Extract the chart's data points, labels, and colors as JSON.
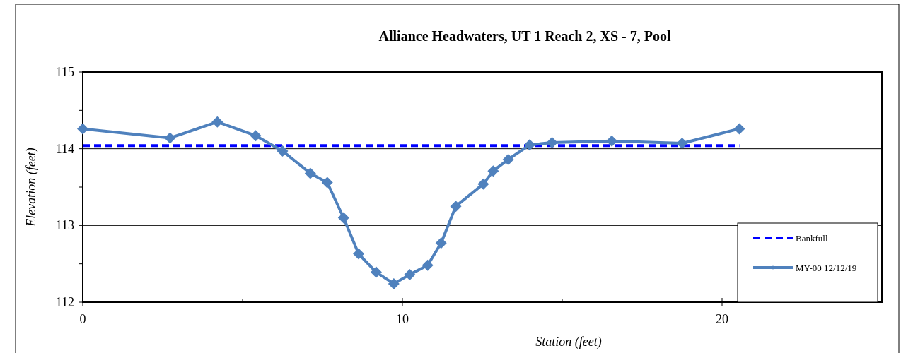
{
  "chart_data": {
    "type": "line",
    "title": "Alliance Headwaters, UT 1 Reach 2, XS - 7, Pool",
    "xlabel": "Station (feet)",
    "ylabel": "Elevation (feet)",
    "xlim": [
      0,
      25
    ],
    "xticks": [
      0,
      {
        "value": 5,
        "label": null
      },
      10,
      {
        "value": 15,
        "label": null
      },
      20,
      {
        "value": 25,
        "label": null
      }
    ],
    "ylim": [
      112,
      115
    ],
    "yticks": [
      112,
      {
        "value": 112.5,
        "label": null
      },
      113,
      {
        "value": 113.5,
        "label": null
      },
      114,
      {
        "value": 114.5,
        "label": null
      },
      115
    ],
    "grid": "y",
    "legend": "bottom right",
    "series": [
      {
        "name": "Bankfull",
        "color": "#0000ff",
        "marker": "none",
        "line_style": "dashed",
        "x": [
          0,
          20.54
        ],
        "values": [
          114.04,
          114.04
        ]
      },
      {
        "name": "MY-00 12/12/19",
        "color": "#4f81bd",
        "marker": "diamond",
        "line_style": "solid",
        "x": [
          0,
          2.73,
          4.21,
          5.41,
          6.25,
          7.12,
          7.65,
          8.16,
          8.63,
          9.18,
          9.73,
          10.23,
          10.79,
          11.21,
          11.67,
          12.53,
          12.84,
          13.31,
          13.98,
          14.68,
          16.55,
          18.75,
          20.54
        ],
        "values": [
          114.26,
          114.14,
          114.35,
          114.17,
          113.97,
          113.68,
          113.56,
          113.1,
          112.63,
          112.39,
          112.24,
          112.36,
          112.48,
          112.77,
          113.25,
          113.54,
          113.71,
          113.86,
          114.05,
          114.08,
          114.1,
          114.07,
          114.26
        ]
      }
    ]
  }
}
